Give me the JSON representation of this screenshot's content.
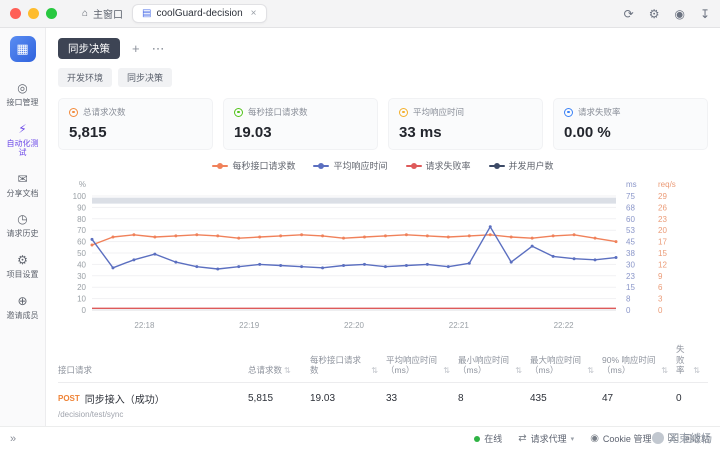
{
  "titlebar": {
    "home_tab": {
      "icon": "⌂",
      "label": "主窗口"
    },
    "project_tab": {
      "icon": "▤",
      "label": "coolGuard-decision",
      "close": "×"
    },
    "icons": [
      {
        "name": "sync-icon",
        "glyph": "⟳"
      },
      {
        "name": "settings-gear-icon",
        "glyph": "⚙"
      },
      {
        "name": "layout-icon",
        "glyph": "◉"
      },
      {
        "name": "download-icon",
        "glyph": "↧"
      }
    ]
  },
  "sidebar": {
    "items": [
      {
        "icon": "◎",
        "label": "接口管理"
      },
      {
        "icon": "⚡",
        "label": "自动化测试"
      },
      {
        "icon": "✉",
        "label": "分享文档"
      },
      {
        "icon": "◷",
        "label": "请求历史"
      },
      {
        "icon": "⚙",
        "label": "项目设置"
      },
      {
        "icon": "⊕",
        "label": "邀请成员"
      }
    ]
  },
  "header": {
    "title": "同步决策",
    "add": "+",
    "more": "⋯"
  },
  "env_tabs": [
    {
      "label": "开发环境"
    },
    {
      "label": "同步决策"
    }
  ],
  "metrics": [
    {
      "label": "总请求次数",
      "value": "5,815",
      "color": "#f28b3c"
    },
    {
      "label": "每秒接口请求数",
      "value": "19.03",
      "color": "#52c41a"
    },
    {
      "label": "平均响应时间",
      "value": "33 ms",
      "color": "#f3b02c"
    },
    {
      "label": "请求失败率",
      "value": "0.00 %",
      "color": "#3b82f6"
    }
  ],
  "legend": [
    {
      "label": "每秒接口请求数",
      "color": "#f0815a"
    },
    {
      "label": "平均响应时间",
      "color": "#5b6fc0"
    },
    {
      "label": "请求失败率",
      "color": "#de5a5a"
    },
    {
      "label": "并发用户数",
      "color": "#3c4a66"
    }
  ],
  "chart_data": {
    "type": "line",
    "x_labels": [
      "22:18",
      "22:19",
      "22:20",
      "22:21",
      "22:22"
    ],
    "left_axis": {
      "unit": "%",
      "ticks": [
        100,
        90,
        80,
        70,
        60,
        50,
        40,
        30,
        20,
        10,
        0
      ]
    },
    "right_axis_ms": {
      "unit": "ms",
      "ticks": [
        75,
        68,
        60,
        53,
        45,
        38,
        30,
        23,
        15,
        8,
        0
      ]
    },
    "right_axis_reqs": {
      "unit": "req/s",
      "ticks": [
        29,
        26,
        23,
        20,
        17,
        15,
        12,
        9,
        6,
        3,
        0
      ]
    },
    "series": [
      {
        "name": "并发用户数",
        "color": "#dbdfe6",
        "width": 6,
        "percent": [
          96,
          96
        ]
      },
      {
        "name": "每秒接口请求数",
        "color": "#f0815a",
        "width": 1.4,
        "dots": true,
        "percent": [
          57,
          64,
          66,
          64,
          65,
          66,
          65,
          63,
          64,
          65,
          66,
          65,
          63,
          64,
          65,
          66,
          65,
          64,
          65,
          66,
          64,
          63,
          65,
          66,
          63,
          60
        ]
      },
      {
        "name": "平均响应时间",
        "color": "#5b6fc0",
        "width": 1.4,
        "dots": true,
        "percent": [
          62,
          37,
          44,
          49,
          42,
          38,
          36,
          38,
          40,
          39,
          38,
          37,
          39,
          40,
          38,
          39,
          40,
          38,
          41,
          73,
          42,
          56,
          47,
          45,
          44,
          46
        ]
      },
      {
        "name": "请求失败率",
        "color": "#de5a5a",
        "width": 1.4,
        "percent": [
          1.5,
          1.5
        ]
      }
    ]
  },
  "table": {
    "col0": "接口请求",
    "sort_glyph": "⇅",
    "columns": [
      "总请求数",
      "每秒接口请求数",
      "平均响应时间（ms）",
      "最小响应时间（ms）",
      "最大响应时间（ms）",
      "90% 响应时间（ms）",
      "失败率"
    ],
    "rows": [
      {
        "method": "POST",
        "name": "同步接入（成功）",
        "path": "/decision/test/sync",
        "values": [
          "5,815",
          "19.03",
          "33",
          "8",
          "435",
          "47",
          "0"
        ]
      }
    ]
  },
  "statusbar": {
    "expand": "»",
    "online": {
      "label": "在线"
    },
    "proxy": {
      "icon": "⇄",
      "label": "请求代理",
      "chevron": "▾"
    },
    "cookie": {
      "icon": "◉",
      "label": "Cookie 管理"
    },
    "trash": {
      "icon": "⌧",
      "label": "回收站"
    }
  },
  "watermark": {
    "text": "无束缚杨"
  }
}
